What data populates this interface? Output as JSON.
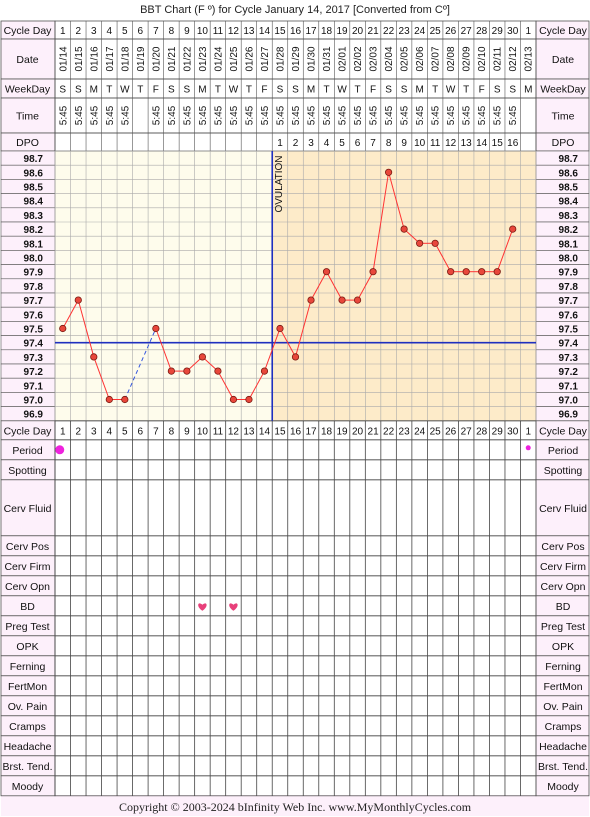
{
  "title": "BBT Chart (F º) for Cycle January 14, 2017  [Converted from Cº]",
  "copyright": "Copyright © 2003-2024 bInfinity Web Inc.     www.MyMonthlyCycles.com",
  "ovulation_label": "OVULATION",
  "row_labels": {
    "cycle_day": "Cycle Day",
    "date": "Date",
    "weekday": "WeekDay",
    "time": "Time",
    "dpo": "DPO",
    "period": "Period",
    "spotting": "Spotting",
    "cerv_fluid": "Cerv Fluid",
    "cerv_pos": "Cerv Pos",
    "cerv_firm": "Cerv Firm",
    "cerv_opn": "Cerv Opn",
    "bd": "BD",
    "preg_test": "Preg Test",
    "opk": "OPK",
    "ferning": "Ferning",
    "fertmon": "FertMon",
    "ov_pain": "Ov. Pain",
    "cramps": "Cramps",
    "headache": "Headache",
    "brst_tend": "Brst. Tend.",
    "moody": "Moody"
  },
  "cycle_days": [
    "1",
    "2",
    "3",
    "4",
    "5",
    "6",
    "7",
    "8",
    "9",
    "10",
    "11",
    "12",
    "13",
    "14",
    "15",
    "16",
    "17",
    "18",
    "19",
    "20",
    "21",
    "22",
    "23",
    "24",
    "25",
    "26",
    "27",
    "28",
    "29",
    "30",
    "1"
  ],
  "dates": [
    "01/14",
    "01/15",
    "01/16",
    "01/17",
    "01/18",
    "01/19",
    "01/20",
    "01/21",
    "01/22",
    "01/23",
    "01/24",
    "01/25",
    "01/26",
    "01/27",
    "01/28",
    "01/29",
    "01/30",
    "01/31",
    "02/01",
    "02/02",
    "02/03",
    "02/04",
    "02/05",
    "02/06",
    "02/07",
    "02/08",
    "02/09",
    "02/10",
    "02/11",
    "02/12",
    "02/13"
  ],
  "weekdays": [
    "S",
    "S",
    "M",
    "T",
    "W",
    "T",
    "F",
    "S",
    "S",
    "M",
    "T",
    "W",
    "T",
    "F",
    "S",
    "S",
    "M",
    "T",
    "W",
    "T",
    "F",
    "S",
    "S",
    "M",
    "T",
    "W",
    "T",
    "F",
    "S",
    "S",
    "M"
  ],
  "times": [
    "5:45",
    "5:45",
    "5:45",
    "5:45",
    "5:45",
    "",
    "5:45",
    "5:45",
    "5:45",
    "5:45",
    "5:45",
    "5:45",
    "5:45",
    "5:45",
    "5:45",
    "5:45",
    "5:45",
    "5:45",
    "5:45",
    "5:45",
    "5:45",
    "5:45",
    "5:45",
    "5:45",
    "5:45",
    "5:45",
    "5:45",
    "5:45",
    "5:45",
    "5:45",
    ""
  ],
  "dpo": [
    "",
    "",
    "",
    "",
    "",
    "",
    "",
    "",
    "",
    "",
    "",
    "",
    "",
    "",
    "1",
    "2",
    "3",
    "4",
    "5",
    "6",
    "7",
    "8",
    "9",
    "10",
    "11",
    "12",
    "13",
    "14",
    "15",
    "16",
    ""
  ],
  "temp_ticks": [
    "98.7",
    "98.6",
    "98.5",
    "98.4",
    "98.3",
    "98.2",
    "98.1",
    "98.0",
    "97.9",
    "97.8",
    "97.7",
    "97.6",
    "97.5",
    "97.4",
    "97.3",
    "97.2",
    "97.1",
    "97.0",
    "96.9"
  ],
  "period_days": [
    1,
    31
  ],
  "bd_days": [
    10,
    12
  ],
  "colors": {
    "label_bg": "#fdf0fb",
    "pre_ovulation_bg": "#fefcec",
    "post_ovulation_bg": "#fdebc9",
    "temp_line": "#ff3333",
    "point_fill": "#e8473b",
    "coverline": "#1f2fbf",
    "ovulation_line": "#1f2fbf",
    "period_dot": "#ee22dd",
    "bd_heart": "#e8407a",
    "grid": "#aaaaaa"
  },
  "chart_data": {
    "type": "line",
    "title": "BBT Chart (F º) for Cycle January 14, 2017  [Converted from Cº]",
    "x_label": "Cycle Day",
    "y_label": "",
    "unit": "°F",
    "x": [
      1,
      2,
      3,
      4,
      5,
      6,
      7,
      8,
      9,
      10,
      11,
      12,
      13,
      14,
      15,
      16,
      17,
      18,
      19,
      20,
      21,
      22,
      23,
      24,
      25,
      26,
      27,
      28,
      29,
      30,
      31
    ],
    "values": [
      97.5,
      97.7,
      97.3,
      97.0,
      97.0,
      null,
      97.5,
      97.2,
      97.2,
      97.3,
      97.2,
      97.0,
      97.0,
      97.2,
      97.5,
      97.3,
      97.7,
      97.9,
      97.7,
      97.7,
      97.9,
      98.6,
      98.2,
      98.1,
      98.1,
      97.9,
      97.9,
      97.9,
      97.9,
      98.2,
      null
    ],
    "dashed_gap": [
      5,
      7
    ],
    "ylim": [
      96.85,
      98.75
    ],
    "coverline": 97.4,
    "ovulation_day": 14,
    "grid": true
  }
}
